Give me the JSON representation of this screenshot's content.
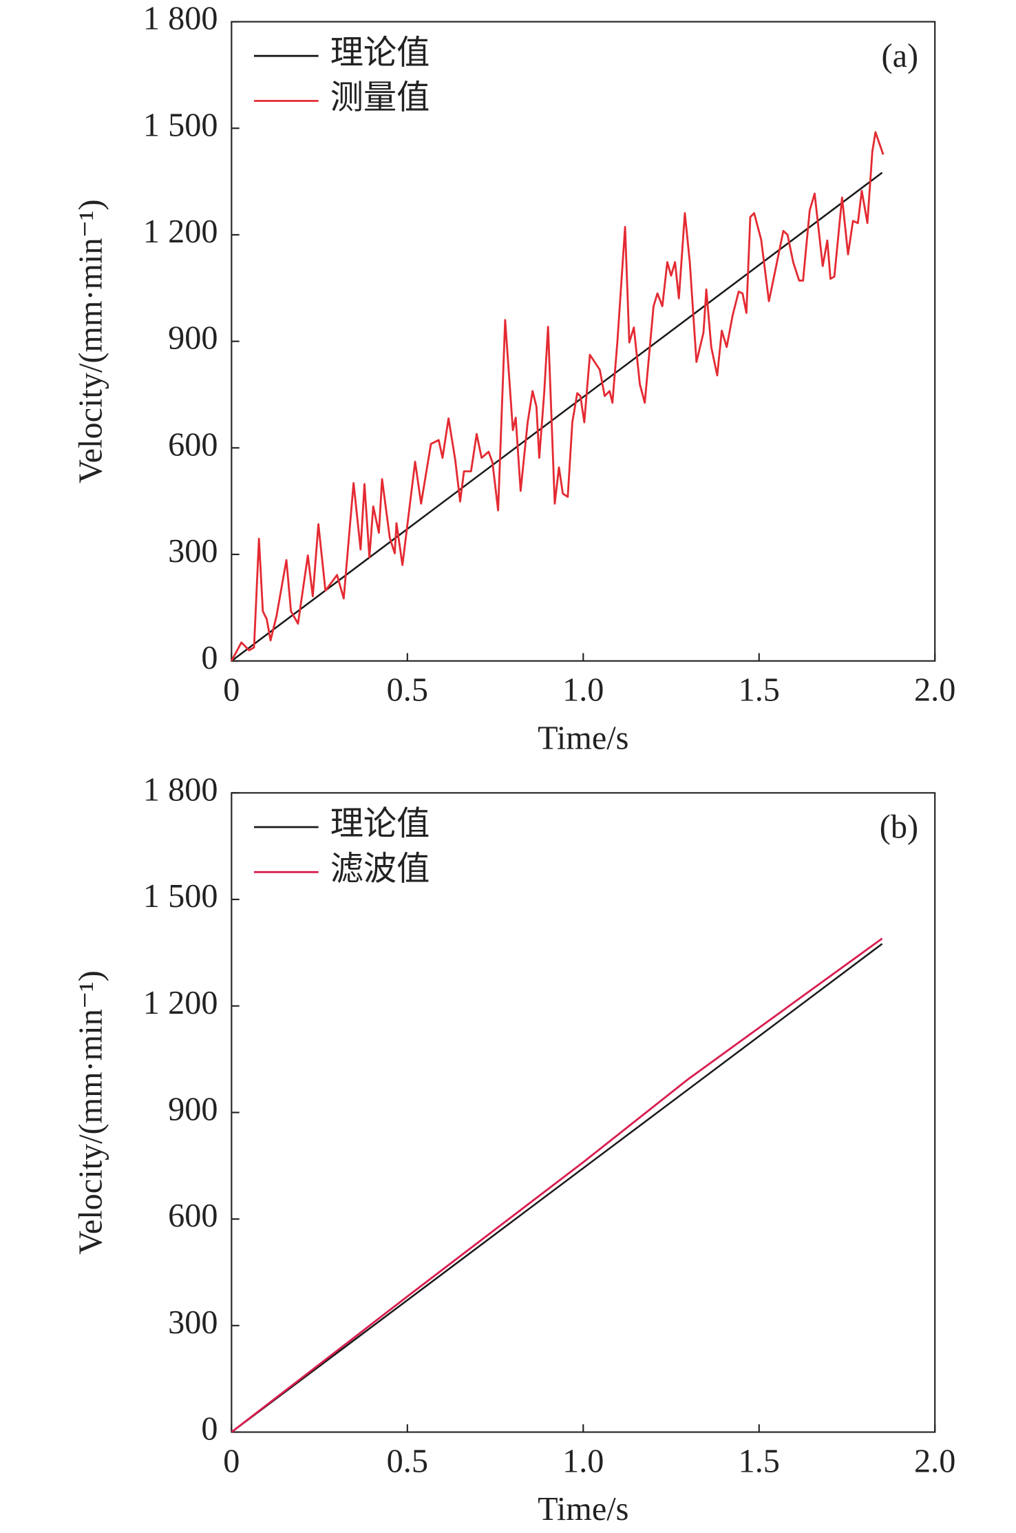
{
  "chart_data": [
    {
      "type": "line",
      "annotation": "(a)",
      "x_label": "Time/s",
      "y_label": "Velocity/(mm·min⁻¹)",
      "xlim": [
        0,
        2
      ],
      "ylim": [
        0,
        1800
      ],
      "xticks": [
        0,
        0.5,
        {
          "value": 1,
          "label": "1.0"
        },
        1.5,
        {
          "value": 2,
          "label": "2.0"
        }
      ],
      "yticks": [
        0,
        300,
        600,
        900,
        {
          "value": 1200,
          "label": "1 200"
        },
        {
          "value": 1500,
          "label": "1 500"
        },
        {
          "value": 1800,
          "label": "1 800"
        }
      ],
      "series": [
        {
          "name": "理论值",
          "color": "#1a1a1a",
          "x": [
            0,
            1.85
          ],
          "values": [
            0,
            1375
          ]
        },
        {
          "name": "测量值",
          "color": "#e42a32",
          "x": [
            0,
            0.028,
            0.05,
            0.064,
            0.078,
            0.089,
            0.1,
            0.111,
            0.128,
            0.156,
            0.169,
            0.189,
            0.217,
            0.231,
            0.247,
            0.267,
            0.3,
            0.319,
            0.347,
            0.367,
            0.378,
            0.392,
            0.403,
            0.419,
            0.428,
            0.45,
            0.464,
            0.469,
            0.486,
            0.522,
            0.539,
            0.567,
            0.589,
            0.6,
            0.617,
            0.636,
            0.65,
            0.661,
            0.681,
            0.697,
            0.711,
            0.731,
            0.742,
            0.758,
            0.778,
            0.8,
            0.808,
            0.822,
            0.842,
            0.856,
            0.867,
            0.875,
            0.889,
            0.9,
            0.919,
            0.931,
            0.942,
            0.956,
            0.969,
            0.983,
            0.992,
            1.003,
            1.019,
            1.047,
            1.061,
            1.075,
            1.083,
            1.097,
            1.119,
            1.131,
            1.144,
            1.161,
            1.175,
            1.2,
            1.211,
            1.225,
            1.239,
            1.25,
            1.261,
            1.272,
            1.289,
            1.303,
            1.322,
            1.342,
            1.35,
            1.364,
            1.381,
            1.394,
            1.408,
            1.425,
            1.442,
            1.453,
            1.464,
            1.475,
            1.486,
            1.506,
            1.528,
            1.547,
            1.569,
            1.581,
            1.597,
            1.614,
            1.625,
            1.644,
            1.658,
            1.681,
            1.694,
            1.703,
            1.714,
            1.736,
            1.753,
            1.767,
            1.781,
            1.792,
            1.808,
            1.822,
            1.831,
            1.853
          ],
          "values": [
            0,
            52,
            30,
            38,
            344,
            140,
            118,
            58,
            127,
            284,
            140,
            105,
            297,
            182,
            385,
            198,
            242,
            176,
            501,
            314,
            498,
            292,
            435,
            361,
            512,
            347,
            303,
            388,
            270,
            561,
            443,
            611,
            622,
            572,
            683,
            567,
            449,
            534,
            534,
            639,
            572,
            589,
            559,
            424,
            960,
            650,
            685,
            479,
            672,
            760,
            716,
            572,
            754,
            941,
            443,
            545,
            471,
            462,
            672,
            754,
            746,
            672,
            862,
            820,
            746,
            760,
            727,
            897,
            1222,
            897,
            939,
            779,
            727,
            999,
            1035,
            999,
            1123,
            1085,
            1123,
            1021,
            1261,
            1123,
            842,
            925,
            1046,
            884,
            804,
            930,
            884,
            974,
            1040,
            1035,
            980,
            1250,
            1261,
            1186,
            1013,
            1104,
            1211,
            1200,
            1123,
            1071,
            1071,
            1269,
            1316,
            1112,
            1184,
            1076,
            1082,
            1305,
            1145,
            1239,
            1233,
            1324,
            1233,
            1434,
            1489,
            1426
          ]
        }
      ]
    },
    {
      "type": "line",
      "annotation": "(b)",
      "x_label": "Time/s",
      "y_label": "Velocity/(mm·min⁻¹)",
      "xlim": [
        0,
        2
      ],
      "ylim": [
        0,
        1800
      ],
      "xticks": [
        0,
        0.5,
        {
          "value": 1,
          "label": "1.0"
        },
        1.5,
        {
          "value": 2,
          "label": "2.0"
        }
      ],
      "yticks": [
        0,
        300,
        600,
        900,
        {
          "value": 1200,
          "label": "1 200"
        },
        {
          "value": 1500,
          "label": "1 500"
        },
        {
          "value": 1800,
          "label": "1 800"
        }
      ],
      "series": [
        {
          "name": "理论值",
          "color": "#1a1a1a",
          "x": [
            0,
            1.85
          ],
          "values": [
            0,
            1375
          ]
        },
        {
          "name": "滤波值",
          "color": "#d81e50",
          "x": [
            0,
            0.5,
            1,
            1.3,
            1.85
          ],
          "values": [
            0,
            382,
            760,
            995,
            1390
          ]
        }
      ]
    }
  ]
}
